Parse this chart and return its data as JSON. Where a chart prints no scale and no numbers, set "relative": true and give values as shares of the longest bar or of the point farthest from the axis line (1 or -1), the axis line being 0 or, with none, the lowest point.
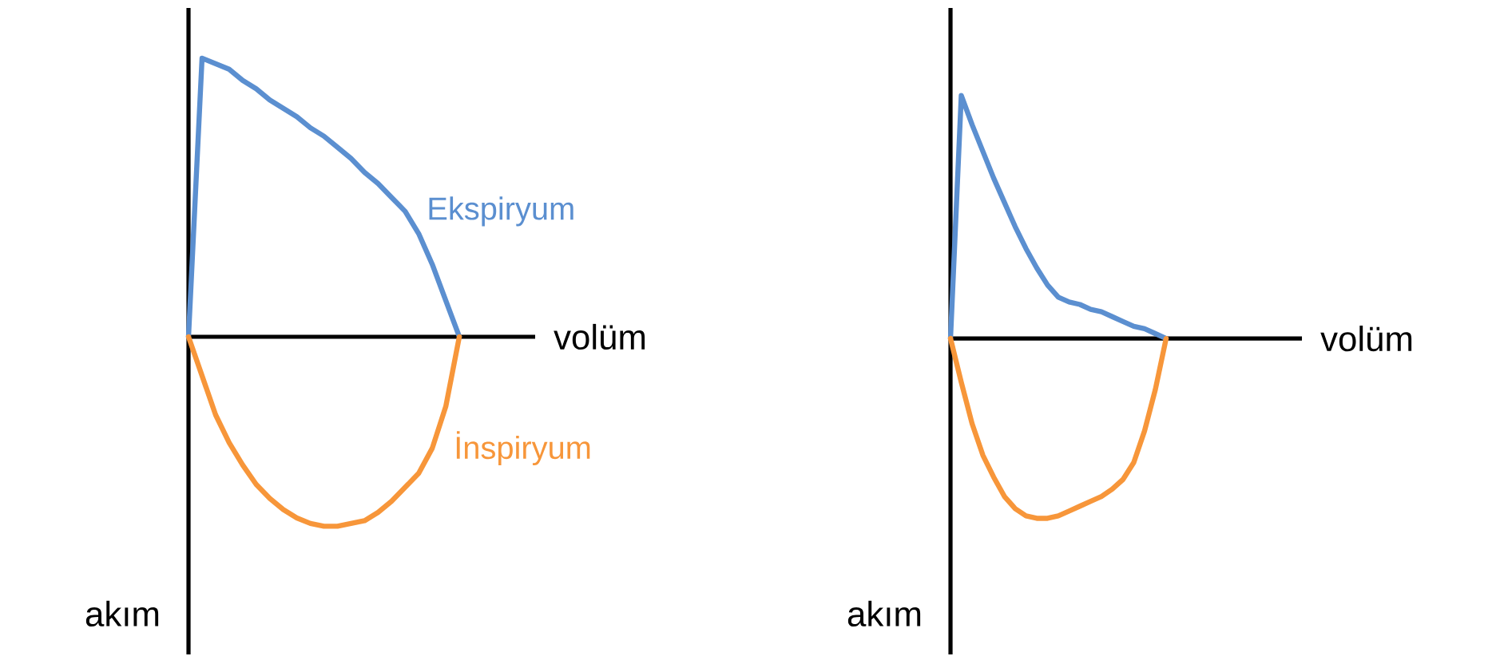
{
  "chart_data": [
    {
      "type": "line",
      "relative": true,
      "xlabel": "volüm",
      "ylabel": "akım",
      "categories": [
        null,
        null,
        null,
        null,
        null,
        null,
        null,
        null,
        null,
        null,
        null,
        null,
        null,
        null,
        null,
        null,
        null,
        null,
        null,
        null,
        null
      ],
      "series": [
        {
          "name": "Ekspiryum",
          "color": "#5b8fd0",
          "values": [
            0,
            1.0,
            0.98,
            0.96,
            0.92,
            0.89,
            0.85,
            0.82,
            0.79,
            0.75,
            0.72,
            0.68,
            0.64,
            0.59,
            0.55,
            0.5,
            0.45,
            0.37,
            0.26,
            0.13,
            0
          ]
        },
        {
          "name": "İnspiryum",
          "color": "#f7963a",
          "values": [
            0,
            -0.14,
            -0.28,
            -0.38,
            -0.46,
            -0.53,
            -0.58,
            -0.62,
            -0.65,
            -0.67,
            -0.68,
            -0.68,
            -0.67,
            -0.66,
            -0.63,
            -0.59,
            -0.54,
            -0.49,
            -0.4,
            -0.25,
            0
          ]
        }
      ]
    },
    {
      "type": "line",
      "relative": true,
      "xlabel": "volüm",
      "ylabel": "akım",
      "categories": [
        null,
        null,
        null,
        null,
        null,
        null,
        null,
        null,
        null,
        null,
        null,
        null,
        null,
        null,
        null,
        null,
        null,
        null,
        null,
        null,
        null
      ],
      "series": [
        {
          "color": "#5b8fd0",
          "values": [
            0,
            1.0,
            0.88,
            0.77,
            0.66,
            0.56,
            0.46,
            0.37,
            0.29,
            0.22,
            0.17,
            0.15,
            0.14,
            0.12,
            0.11,
            0.09,
            0.07,
            0.05,
            0.04,
            0.02,
            0
          ]
        },
        {
          "color": "#f7963a",
          "values": [
            0,
            -0.18,
            -0.35,
            -0.48,
            -0.57,
            -0.65,
            -0.7,
            -0.73,
            -0.74,
            -0.74,
            -0.73,
            -0.71,
            -0.69,
            -0.67,
            -0.65,
            -0.62,
            -0.58,
            -0.51,
            -0.38,
            -0.21,
            0
          ]
        }
      ]
    }
  ]
}
